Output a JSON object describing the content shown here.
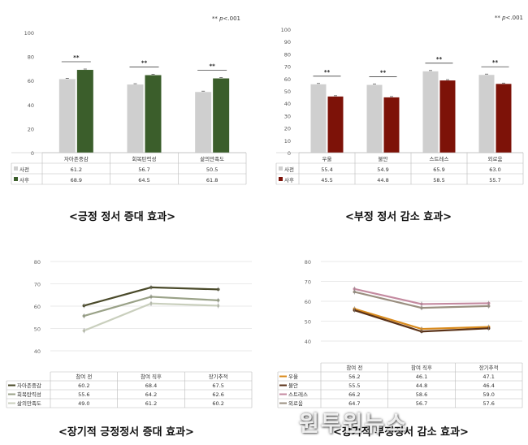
{
  "captions": {
    "c1": "<긍정 정서 증대 효과>",
    "c2": "<부정 정서 감소 효과>",
    "c3": "<장기적 긍정정서 증대 효과>",
    "c4": "<장기적 부정정서 감소 효과>"
  },
  "watermark": "원투원뉴스",
  "colors": {
    "pre_gray": "#cfcfcf",
    "post_green": "#3b5e2b",
    "post_red": "#7d1208",
    "l_dark": "#4a4a2a",
    "l_mid": "#9aa288",
    "l_light": "#c9cfbd",
    "orange": "#d98b1e",
    "brown": "#5a3218",
    "pink": "#c48aa0",
    "taupe": "#9a8f80"
  },
  "chart_data": [
    {
      "type": "bar",
      "annotation": "** p<.001",
      "sig_mark": "**",
      "categories": [
        "자아존중감",
        "회복탄력성",
        "삶의만족도"
      ],
      "series": [
        {
          "name": "사전",
          "values": [
            61.2,
            56.7,
            50.5
          ],
          "color": "#cfcfcf"
        },
        {
          "name": "사후",
          "values": [
            68.9,
            64.5,
            61.8
          ],
          "color": "#3b5e2b"
        }
      ],
      "ylim": [
        0,
        100
      ],
      "yticks": [
        0,
        20,
        40,
        60,
        80,
        100
      ],
      "grid": false,
      "legend": "table"
    },
    {
      "type": "bar",
      "annotation": "** p<.001",
      "sig_mark": "**",
      "categories": [
        "우울",
        "불안",
        "스트레스",
        "외로움"
      ],
      "series": [
        {
          "name": "사전",
          "values": [
            55.4,
            54.9,
            65.9,
            63.0
          ],
          "color": "#cfcfcf"
        },
        {
          "name": "사후",
          "values": [
            45.5,
            44.8,
            58.5,
            55.7
          ],
          "color": "#7d1208"
        }
      ],
      "ylim": [
        0,
        100
      ],
      "yticks": [
        0,
        10,
        20,
        30,
        40,
        50,
        60,
        70,
        80,
        90,
        100
      ],
      "grid": false,
      "legend": "table"
    },
    {
      "type": "line",
      "categories": [
        "참여 전",
        "참여 직후",
        "장기추적"
      ],
      "series": [
        {
          "name": "자아존중감",
          "values": [
            60.2,
            68.4,
            67.5
          ],
          "color": "#4a4a2a"
        },
        {
          "name": "회복탄력성",
          "values": [
            55.6,
            64.2,
            62.6
          ],
          "color": "#9aa288"
        },
        {
          "name": "삶의만족도",
          "values": [
            49.0,
            61.2,
            60.2
          ],
          "color": "#c9cfbd"
        }
      ],
      "ylim": [
        40,
        80
      ],
      "yticks": [
        40,
        50,
        60,
        70,
        80
      ],
      "grid": true,
      "legend": "table"
    },
    {
      "type": "line",
      "categories": [
        "참여 전",
        "참여 직후",
        "장기추적"
      ],
      "series": [
        {
          "name": "우울",
          "values": [
            56.2,
            46.1,
            47.1
          ],
          "color": "#d98b1e"
        },
        {
          "name": "불안",
          "values": [
            55.5,
            44.8,
            46.4
          ],
          "color": "#5a3218"
        },
        {
          "name": "스트레스",
          "values": [
            66.2,
            58.6,
            59.0
          ],
          "color": "#c48aa0"
        },
        {
          "name": "외로움",
          "values": [
            64.7,
            56.7,
            57.6
          ],
          "color": "#9a8f80"
        }
      ],
      "ylim": [
        40,
        80
      ],
      "yticks": [
        40,
        50,
        60,
        70,
        80
      ],
      "grid": true,
      "legend": "table"
    }
  ]
}
